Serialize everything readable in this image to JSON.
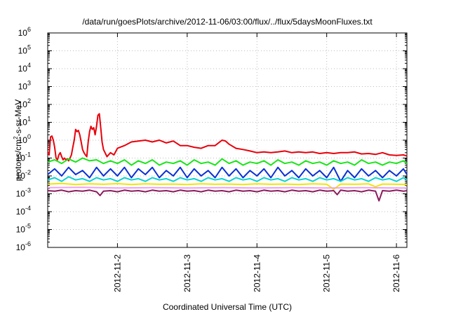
{
  "chart_data": {
    "type": "line",
    "title": "/data/run/goesPlots/archive/2012-11-06/03:00/flux/../flux/5daysMoonFluxes.txt",
    "xlabel": "Coordinated Universal Time (UTC)",
    "ylabel_main": "protons/cm",
    "ylabel_sup": "2",
    "ylabel_rest": "-s-sr-MeV",
    "xlim": [
      1.0,
      6.15
    ],
    "ylim_exp": [
      -6,
      6
    ],
    "yscale": "log",
    "grid": true,
    "x_ticks": [
      {
        "value": 2,
        "label": "2012-11-2"
      },
      {
        "value": 3,
        "label": "2012-11-3"
      },
      {
        "value": 4,
        "label": "2012-11-4"
      },
      {
        "value": 5,
        "label": "2012-11-5"
      },
      {
        "value": 6,
        "label": "2012-11-6"
      }
    ],
    "y_ticks": [
      {
        "exp": 6,
        "base": "10",
        "sup": "6"
      },
      {
        "exp": 5,
        "base": "10",
        "sup": "5"
      },
      {
        "exp": 4,
        "base": "10",
        "sup": "4"
      },
      {
        "exp": 3,
        "base": "10",
        "sup": "3"
      },
      {
        "exp": 2,
        "base": "10",
        "sup": "2"
      },
      {
        "exp": 1,
        "base": "10",
        "sup": "1"
      },
      {
        "exp": 0,
        "base": "10",
        "sup": "0"
      },
      {
        "exp": -1,
        "base": "10",
        "sup": "-1"
      },
      {
        "exp": -2,
        "base": "10",
        "sup": "-2"
      },
      {
        "exp": -3,
        "base": "10",
        "sup": "-3"
      },
      {
        "exp": -4,
        "base": "10",
        "sup": "-4"
      },
      {
        "exp": -5,
        "base": "10",
        "sup": "-5"
      },
      {
        "exp": -6,
        "base": "10",
        "sup": "-6"
      }
    ],
    "series": [
      {
        "color": "#e8000b",
        "x": [
          1.0,
          1.02,
          1.04,
          1.06,
          1.08,
          1.1,
          1.12,
          1.14,
          1.16,
          1.18,
          1.2,
          1.22,
          1.24,
          1.26,
          1.28,
          1.3,
          1.32,
          1.34,
          1.36,
          1.38,
          1.4,
          1.42,
          1.44,
          1.46,
          1.48,
          1.5,
          1.52,
          1.54,
          1.56,
          1.58,
          1.6,
          1.62,
          1.64,
          1.66,
          1.68,
          1.7,
          1.72,
          1.74,
          1.76,
          1.78,
          1.8,
          1.85,
          1.9,
          1.95,
          2.0,
          2.1,
          2.2,
          2.3,
          2.4,
          2.5,
          2.6,
          2.7,
          2.8,
          2.9,
          3.0,
          3.1,
          3.2,
          3.3,
          3.4,
          3.5,
          3.55,
          3.6,
          3.7,
          3.8,
          3.9,
          4.0,
          4.1,
          4.2,
          4.3,
          4.4,
          4.5,
          4.6,
          4.7,
          4.8,
          4.9,
          5.0,
          5.1,
          5.2,
          5.3,
          5.4,
          5.5,
          5.6,
          5.7,
          5.8,
          5.9,
          6.0,
          6.1,
          6.15
        ],
        "y": [
          0.2,
          0.15,
          1.5,
          1.7,
          1.0,
          0.4,
          0.1,
          0.08,
          0.15,
          0.2,
          0.12,
          0.08,
          0.1,
          0.08,
          0.09,
          0.07,
          0.1,
          0.15,
          0.4,
          1.0,
          4.0,
          3.0,
          3.5,
          2.0,
          0.8,
          0.3,
          0.2,
          0.15,
          0.12,
          0.8,
          3.0,
          6.0,
          4.0,
          5.0,
          2.0,
          6.0,
          25.0,
          30.0,
          5.0,
          0.8,
          0.3,
          0.12,
          0.2,
          0.15,
          0.35,
          0.5,
          0.8,
          0.9,
          1.0,
          0.8,
          1.0,
          0.7,
          0.9,
          0.5,
          0.5,
          0.4,
          0.35,
          0.5,
          0.5,
          1.0,
          0.9,
          0.6,
          0.35,
          0.3,
          0.25,
          0.2,
          0.22,
          0.2,
          0.22,
          0.25,
          0.2,
          0.22,
          0.2,
          0.22,
          0.18,
          0.2,
          0.18,
          0.2,
          0.2,
          0.22,
          0.17,
          0.18,
          0.16,
          0.2,
          0.15,
          0.14,
          0.15,
          0.13
        ]
      },
      {
        "color": "#19e619",
        "x": [
          1.0,
          1.1,
          1.2,
          1.3,
          1.4,
          1.5,
          1.6,
          1.7,
          1.8,
          1.9,
          2.0,
          2.1,
          2.2,
          2.3,
          2.4,
          2.5,
          2.6,
          2.7,
          2.8,
          2.9,
          3.0,
          3.1,
          3.2,
          3.3,
          3.4,
          3.5,
          3.6,
          3.7,
          3.8,
          3.9,
          4.0,
          4.1,
          4.2,
          4.3,
          4.4,
          4.5,
          4.6,
          4.7,
          4.8,
          4.9,
          5.0,
          5.1,
          5.2,
          5.3,
          5.4,
          5.5,
          5.6,
          5.7,
          5.8,
          5.9,
          6.0,
          6.1,
          6.15
        ],
        "y": [
          0.06,
          0.08,
          0.05,
          0.09,
          0.06,
          0.1,
          0.07,
          0.08,
          0.05,
          0.07,
          0.05,
          0.08,
          0.04,
          0.07,
          0.05,
          0.08,
          0.04,
          0.06,
          0.05,
          0.07,
          0.04,
          0.08,
          0.05,
          0.06,
          0.04,
          0.09,
          0.05,
          0.07,
          0.04,
          0.06,
          0.05,
          0.07,
          0.04,
          0.08,
          0.05,
          0.06,
          0.04,
          0.07,
          0.05,
          0.06,
          0.04,
          0.07,
          0.05,
          0.06,
          0.04,
          0.08,
          0.05,
          0.06,
          0.04,
          0.06,
          0.05,
          0.07,
          0.05
        ]
      },
      {
        "color": "#0a2fd6",
        "x": [
          1.0,
          1.1,
          1.2,
          1.3,
          1.4,
          1.5,
          1.6,
          1.7,
          1.8,
          1.9,
          2.0,
          2.1,
          2.2,
          2.3,
          2.4,
          2.5,
          2.6,
          2.7,
          2.8,
          2.9,
          3.0,
          3.1,
          3.2,
          3.3,
          3.4,
          3.5,
          3.6,
          3.7,
          3.8,
          3.9,
          4.0,
          4.1,
          4.2,
          4.3,
          4.4,
          4.5,
          4.6,
          4.7,
          4.8,
          4.9,
          5.0,
          5.1,
          5.2,
          5.3,
          5.4,
          5.5,
          5.6,
          5.7,
          5.8,
          5.9,
          6.0,
          6.1,
          6.15
        ],
        "y": [
          0.012,
          0.025,
          0.01,
          0.03,
          0.012,
          0.02,
          0.008,
          0.03,
          0.01,
          0.025,
          0.01,
          0.03,
          0.008,
          0.025,
          0.012,
          0.03,
          0.008,
          0.02,
          0.01,
          0.03,
          0.008,
          0.025,
          0.01,
          0.02,
          0.008,
          0.03,
          0.01,
          0.025,
          0.008,
          0.02,
          0.01,
          0.025,
          0.008,
          0.03,
          0.01,
          0.02,
          0.008,
          0.025,
          0.01,
          0.02,
          0.008,
          0.03,
          0.005,
          0.02,
          0.008,
          0.025,
          0.01,
          0.02,
          0.008,
          0.02,
          0.01,
          0.025,
          0.012
        ]
      },
      {
        "color": "#0ad2d2",
        "x": [
          1.0,
          1.1,
          1.2,
          1.3,
          1.4,
          1.5,
          1.6,
          1.7,
          1.8,
          1.9,
          2.0,
          2.1,
          2.2,
          2.3,
          2.4,
          2.5,
          2.6,
          2.7,
          2.8,
          2.9,
          3.0,
          3.1,
          3.2,
          3.3,
          3.4,
          3.5,
          3.6,
          3.7,
          3.8,
          3.9,
          4.0,
          4.1,
          4.2,
          4.3,
          4.4,
          4.5,
          4.6,
          4.7,
          4.8,
          4.9,
          5.0,
          5.1,
          5.2,
          5.3,
          5.4,
          5.5,
          5.6,
          5.7,
          5.8,
          5.9,
          6.0,
          6.1,
          6.15
        ],
        "y": [
          0.006,
          0.008,
          0.005,
          0.009,
          0.006,
          0.007,
          0.005,
          0.008,
          0.006,
          0.007,
          0.005,
          0.008,
          0.006,
          0.007,
          0.005,
          0.008,
          0.006,
          0.007,
          0.005,
          0.008,
          0.006,
          0.007,
          0.005,
          0.008,
          0.006,
          0.007,
          0.005,
          0.008,
          0.006,
          0.007,
          0.005,
          0.008,
          0.006,
          0.007,
          0.005,
          0.008,
          0.006,
          0.007,
          0.005,
          0.008,
          0.006,
          0.007,
          0.005,
          0.008,
          0.006,
          0.007,
          0.005,
          0.008,
          0.006,
          0.007,
          0.005,
          0.008,
          0.006
        ]
      },
      {
        "color": "#f2e600",
        "x": [
          1.0,
          1.2,
          1.4,
          1.6,
          1.8,
          2.0,
          2.2,
          2.4,
          2.6,
          2.8,
          3.0,
          3.2,
          3.4,
          3.6,
          3.8,
          4.0,
          4.2,
          4.4,
          4.6,
          4.8,
          5.0,
          5.1,
          5.2,
          5.4,
          5.6,
          5.7,
          5.8,
          6.0,
          6.15
        ],
        "y": [
          0.0035,
          0.0038,
          0.0033,
          0.0036,
          0.0034,
          0.0037,
          0.0033,
          0.0036,
          0.0034,
          0.0035,
          0.0033,
          0.0036,
          0.0034,
          0.0035,
          0.0033,
          0.0036,
          0.0034,
          0.0035,
          0.0033,
          0.0036,
          0.0034,
          0.0018,
          0.0035,
          0.0034,
          0.0036,
          0.0025,
          0.0035,
          0.0034,
          0.0033
        ]
      },
      {
        "color": "#f0a0f0",
        "x": [
          1.0,
          1.5,
          2.0,
          2.5,
          3.0,
          3.5,
          4.0,
          4.5,
          5.0,
          5.5,
          6.0,
          6.15
        ],
        "y": [
          0.0022,
          0.0023,
          0.0021,
          0.0022,
          0.0021,
          0.0022,
          0.0021,
          0.0022,
          0.0021,
          0.0022,
          0.0021,
          0.0021
        ]
      },
      {
        "color": "#8b1c5c",
        "x": [
          1.0,
          1.1,
          1.2,
          1.3,
          1.4,
          1.5,
          1.6,
          1.7,
          1.75,
          1.8,
          1.9,
          2.0,
          2.1,
          2.2,
          2.3,
          2.4,
          2.5,
          2.6,
          2.7,
          2.8,
          2.9,
          3.0,
          3.1,
          3.2,
          3.3,
          3.4,
          3.5,
          3.6,
          3.7,
          3.8,
          3.9,
          4.0,
          4.1,
          4.2,
          4.3,
          4.4,
          4.5,
          4.6,
          4.7,
          4.8,
          4.9,
          5.0,
          5.1,
          5.15,
          5.2,
          5.3,
          5.4,
          5.5,
          5.6,
          5.7,
          5.75,
          5.8,
          5.9,
          6.0,
          6.1,
          6.15
        ],
        "y": [
          0.0015,
          0.0014,
          0.0016,
          0.0013,
          0.0015,
          0.0014,
          0.0016,
          0.0013,
          0.0008,
          0.0014,
          0.0015,
          0.0013,
          0.0016,
          0.0014,
          0.0015,
          0.0013,
          0.0016,
          0.0014,
          0.0015,
          0.0013,
          0.0016,
          0.0014,
          0.0015,
          0.0013,
          0.0016,
          0.0014,
          0.0015,
          0.0013,
          0.0016,
          0.0014,
          0.0015,
          0.0013,
          0.0016,
          0.0014,
          0.0015,
          0.0013,
          0.0016,
          0.0014,
          0.0015,
          0.0013,
          0.0016,
          0.0014,
          0.0015,
          0.0009,
          0.0016,
          0.0014,
          0.0015,
          0.0013,
          0.0016,
          0.0014,
          0.0004,
          0.0015,
          0.0014,
          0.0016,
          0.0014,
          0.0015
        ]
      }
    ]
  }
}
